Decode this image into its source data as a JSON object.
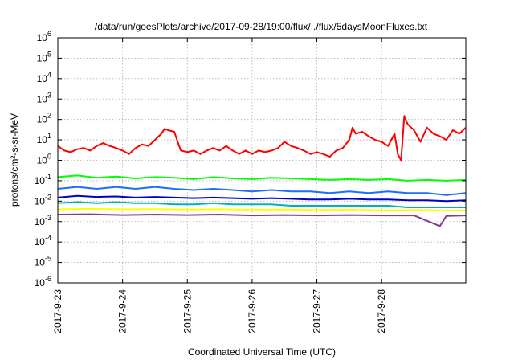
{
  "chart_data": {
    "type": "line",
    "title": "/data/run/goesPlots/archive/2017-09-28/19:00/flux/../flux/5daysMoonFluxes.txt",
    "xlabel": "Coordinated Universal Time (UTC)",
    "ylabel": "protons/cm²-s-sr-MeV",
    "y_scale": "log",
    "ylim": [
      1e-06,
      1000000.0
    ],
    "xlim": [
      0,
      6.3
    ],
    "grid": true,
    "x_ticks": [
      {
        "value": 0,
        "label": "2017-9-23"
      },
      {
        "value": 1,
        "label": "2017-9-24"
      },
      {
        "value": 2,
        "label": "2017-9-25"
      },
      {
        "value": 3,
        "label": "2017-9-26"
      },
      {
        "value": 4,
        "label": "2017-9-27"
      },
      {
        "value": 5,
        "label": "2017-9-28"
      }
    ],
    "y_ticks": [
      {
        "value": 1000000.0,
        "base": "10",
        "exp": "6"
      },
      {
        "value": 100000.0,
        "base": "10",
        "exp": "5"
      },
      {
        "value": 10000.0,
        "base": "10",
        "exp": "4"
      },
      {
        "value": 1000.0,
        "base": "10",
        "exp": "3"
      },
      {
        "value": 100.0,
        "base": "10",
        "exp": "2"
      },
      {
        "value": 10.0,
        "base": "10",
        "exp": "1"
      },
      {
        "value": 1.0,
        "base": "10",
        "exp": "0"
      },
      {
        "value": 0.1,
        "base": "10",
        "exp": "-1"
      },
      {
        "value": 0.01,
        "base": "10",
        "exp": "-2"
      },
      {
        "value": 0.001,
        "base": "10",
        "exp": "-3"
      },
      {
        "value": 0.0001,
        "base": "10",
        "exp": "-4"
      },
      {
        "value": 1e-05,
        "base": "10",
        "exp": "-5"
      },
      {
        "value": 1e-06,
        "base": "10",
        "exp": "-6"
      }
    ],
    "series": [
      {
        "color": "#ff0000",
        "points": [
          [
            0,
            5
          ],
          [
            0.1,
            3
          ],
          [
            0.2,
            2.5
          ],
          [
            0.3,
            3.5
          ],
          [
            0.4,
            4
          ],
          [
            0.5,
            3
          ],
          [
            0.6,
            5
          ],
          [
            0.7,
            7
          ],
          [
            0.8,
            5
          ],
          [
            0.9,
            4
          ],
          [
            1.0,
            3
          ],
          [
            1.1,
            2
          ],
          [
            1.2,
            4
          ],
          [
            1.3,
            6
          ],
          [
            1.4,
            5
          ],
          [
            1.5,
            10
          ],
          [
            1.6,
            20
          ],
          [
            1.65,
            35
          ],
          [
            1.7,
            30
          ],
          [
            1.8,
            25
          ],
          [
            1.85,
            8
          ],
          [
            1.9,
            3
          ],
          [
            2.0,
            2.5
          ],
          [
            2.1,
            3
          ],
          [
            2.2,
            2
          ],
          [
            2.3,
            3
          ],
          [
            2.4,
            4
          ],
          [
            2.5,
            3
          ],
          [
            2.6,
            5
          ],
          [
            2.7,
            3
          ],
          [
            2.8,
            2
          ],
          [
            2.9,
            3
          ],
          [
            3.0,
            2
          ],
          [
            3.1,
            3
          ],
          [
            3.2,
            2.5
          ],
          [
            3.3,
            3
          ],
          [
            3.4,
            4
          ],
          [
            3.5,
            8
          ],
          [
            3.6,
            5
          ],
          [
            3.7,
            4
          ],
          [
            3.8,
            3
          ],
          [
            3.9,
            2
          ],
          [
            4.0,
            2.5
          ],
          [
            4.1,
            2
          ],
          [
            4.2,
            1.5
          ],
          [
            4.3,
            3
          ],
          [
            4.4,
            4
          ],
          [
            4.5,
            10
          ],
          [
            4.55,
            40
          ],
          [
            4.6,
            20
          ],
          [
            4.7,
            25
          ],
          [
            4.8,
            15
          ],
          [
            4.9,
            10
          ],
          [
            5.0,
            8
          ],
          [
            5.1,
            5
          ],
          [
            5.2,
            20
          ],
          [
            5.25,
            2
          ],
          [
            5.3,
            1
          ],
          [
            5.35,
            150
          ],
          [
            5.4,
            60
          ],
          [
            5.5,
            30
          ],
          [
            5.6,
            8
          ],
          [
            5.7,
            40
          ],
          [
            5.8,
            20
          ],
          [
            5.9,
            15
          ],
          [
            6.0,
            10
          ],
          [
            6.1,
            30
          ],
          [
            6.2,
            20
          ],
          [
            6.3,
            40
          ]
        ]
      },
      {
        "color": "#00ff00",
        "points": [
          [
            0,
            0.15
          ],
          [
            0.3,
            0.18
          ],
          [
            0.6,
            0.14
          ],
          [
            0.9,
            0.16
          ],
          [
            1.2,
            0.13
          ],
          [
            1.5,
            0.15
          ],
          [
            1.8,
            0.14
          ],
          [
            2.1,
            0.12
          ],
          [
            2.4,
            0.15
          ],
          [
            2.7,
            0.13
          ],
          [
            3.0,
            0.12
          ],
          [
            3.3,
            0.14
          ],
          [
            3.6,
            0.13
          ],
          [
            3.9,
            0.12
          ],
          [
            4.2,
            0.11
          ],
          [
            4.5,
            0.12
          ],
          [
            4.8,
            0.11
          ],
          [
            5.1,
            0.12
          ],
          [
            5.4,
            0.1
          ],
          [
            5.7,
            0.11
          ],
          [
            6.0,
            0.1
          ],
          [
            6.3,
            0.11
          ]
        ]
      },
      {
        "color": "#1e6cff",
        "points": [
          [
            0,
            0.04
          ],
          [
            0.3,
            0.05
          ],
          [
            0.6,
            0.04
          ],
          [
            0.9,
            0.05
          ],
          [
            1.2,
            0.04
          ],
          [
            1.5,
            0.05
          ],
          [
            1.8,
            0.04
          ],
          [
            2.1,
            0.035
          ],
          [
            2.4,
            0.04
          ],
          [
            2.7,
            0.035
          ],
          [
            3.0,
            0.03
          ],
          [
            3.3,
            0.035
          ],
          [
            3.6,
            0.03
          ],
          [
            3.9,
            0.03
          ],
          [
            4.2,
            0.025
          ],
          [
            4.5,
            0.03
          ],
          [
            4.8,
            0.025
          ],
          [
            5.1,
            0.03
          ],
          [
            5.4,
            0.025
          ],
          [
            5.7,
            0.025
          ],
          [
            6.0,
            0.02
          ],
          [
            6.3,
            0.025
          ]
        ]
      },
      {
        "color": "#0000cc",
        "points": [
          [
            0,
            0.015
          ],
          [
            0.3,
            0.018
          ],
          [
            0.6,
            0.016
          ],
          [
            0.9,
            0.017
          ],
          [
            1.2,
            0.015
          ],
          [
            1.5,
            0.016
          ],
          [
            1.8,
            0.015
          ],
          [
            2.1,
            0.014
          ],
          [
            2.4,
            0.015
          ],
          [
            2.7,
            0.014
          ],
          [
            3.0,
            0.013
          ],
          [
            3.3,
            0.014
          ],
          [
            3.6,
            0.013
          ],
          [
            3.9,
            0.012
          ],
          [
            4.2,
            0.012
          ],
          [
            4.5,
            0.013
          ],
          [
            4.8,
            0.012
          ],
          [
            5.1,
            0.012
          ],
          [
            5.4,
            0.011
          ],
          [
            5.7,
            0.011
          ],
          [
            6.0,
            0.01
          ],
          [
            6.3,
            0.011
          ]
        ]
      },
      {
        "color": "#00b3b3",
        "points": [
          [
            0,
            0.008
          ],
          [
            0.3,
            0.009
          ],
          [
            0.6,
            0.008
          ],
          [
            0.9,
            0.009
          ],
          [
            1.2,
            0.008
          ],
          [
            1.5,
            0.008
          ],
          [
            1.8,
            0.007
          ],
          [
            2.1,
            0.007
          ],
          [
            2.4,
            0.008
          ],
          [
            2.7,
            0.007
          ],
          [
            3.0,
            0.007
          ],
          [
            3.3,
            0.007
          ],
          [
            3.6,
            0.006
          ],
          [
            3.9,
            0.006
          ],
          [
            4.2,
            0.006
          ],
          [
            4.5,
            0.006
          ],
          [
            4.8,
            0.006
          ],
          [
            5.1,
            0.006
          ],
          [
            5.4,
            0.005
          ],
          [
            5.7,
            0.005
          ],
          [
            6.0,
            0.005
          ],
          [
            6.3,
            0.005
          ]
        ]
      },
      {
        "color": "#ffff00",
        "points": [
          [
            0,
            0.004
          ],
          [
            0.5,
            0.0042
          ],
          [
            1.0,
            0.004
          ],
          [
            1.5,
            0.0041
          ],
          [
            2.0,
            0.0039
          ],
          [
            2.5,
            0.004
          ],
          [
            3.0,
            0.0038
          ],
          [
            3.5,
            0.0039
          ],
          [
            4.0,
            0.0037
          ],
          [
            4.5,
            0.0038
          ],
          [
            5.0,
            0.0036
          ],
          [
            5.5,
            0.0037
          ],
          [
            6.0,
            0.0035
          ],
          [
            6.3,
            0.0036
          ]
        ]
      },
      {
        "color": "#8b3a8b",
        "points": [
          [
            0,
            0.0022
          ],
          [
            0.5,
            0.0023
          ],
          [
            1.0,
            0.0021
          ],
          [
            1.5,
            0.0022
          ],
          [
            2.0,
            0.0021
          ],
          [
            2.5,
            0.0022
          ],
          [
            3.0,
            0.002
          ],
          [
            3.5,
            0.0021
          ],
          [
            4.0,
            0.002
          ],
          [
            4.5,
            0.0021
          ],
          [
            5.0,
            0.002
          ],
          [
            5.5,
            0.002
          ],
          [
            5.9,
            0.0006
          ],
          [
            6.0,
            0.0019
          ],
          [
            6.3,
            0.002
          ]
        ]
      }
    ]
  }
}
